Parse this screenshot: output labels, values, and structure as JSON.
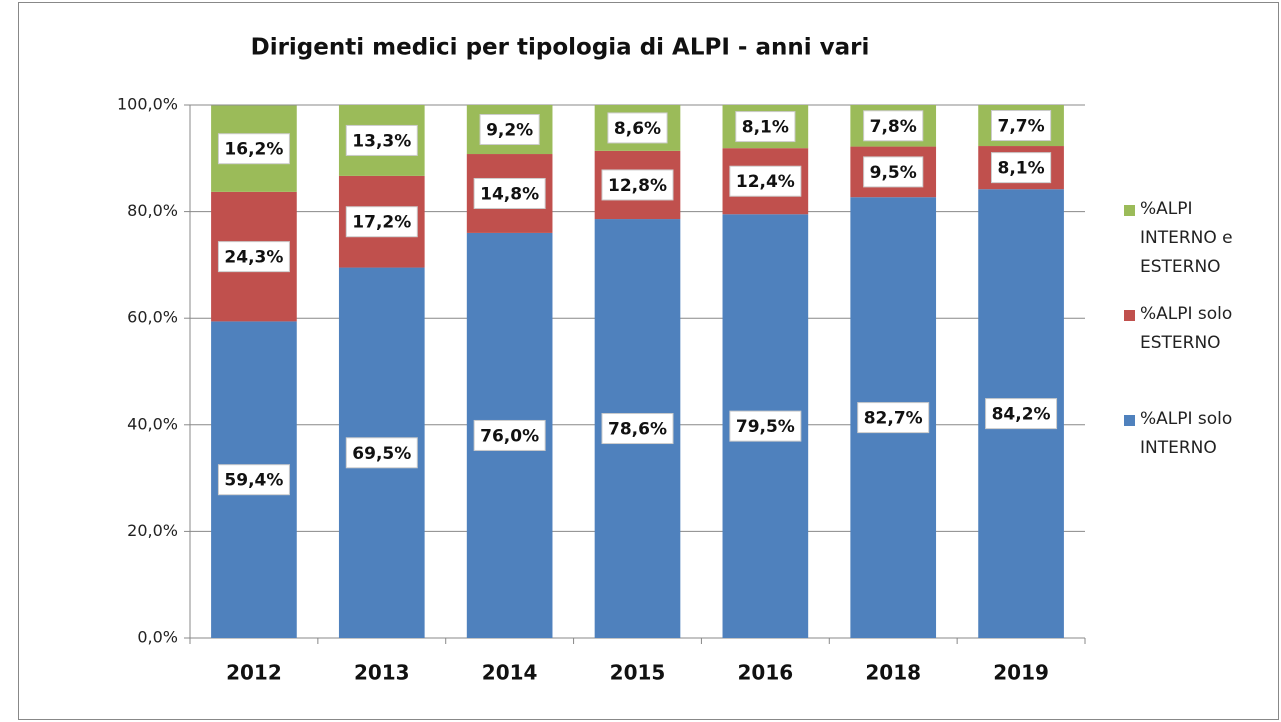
{
  "chart_data": {
    "type": "stacked_bar",
    "title": "Dirigenti medici per tipologia di ALPI - anni vari",
    "categories": [
      "2012",
      "2013",
      "2014",
      "2015",
      "2016",
      "2018",
      "2019"
    ],
    "series": [
      {
        "name": "%ALPI solo INTERNO",
        "color": "#4f81bd",
        "values": [
          59.4,
          69.5,
          76.0,
          78.6,
          79.5,
          82.7,
          84.2
        ],
        "value_labels": [
          "59,4%",
          "69,5%",
          "76,0%",
          "78,6%",
          "79,5%",
          "82,7%",
          "84,2%"
        ]
      },
      {
        "name": "%ALPI solo ESTERNO",
        "color": "#c0504d",
        "values": [
          24.3,
          17.2,
          14.8,
          12.8,
          12.4,
          9.5,
          8.1
        ],
        "value_labels": [
          "24,3%",
          "17,2%",
          "14,8%",
          "12,8%",
          "12,4%",
          "9,5%",
          "8,1%"
        ]
      },
      {
        "name": "%ALPI INTERNO e ESTERNO",
        "color": "#9bbb59",
        "values": [
          16.2,
          13.3,
          9.2,
          8.6,
          8.1,
          7.8,
          7.7
        ],
        "value_labels": [
          "16,2%",
          "13,3%",
          "9,2%",
          "8,6%",
          "8,1%",
          "7,8%",
          "7,7%"
        ]
      }
    ],
    "ylim": [
      0,
      100
    ],
    "yticks": [
      {
        "value": 0,
        "label": "0,0%"
      },
      {
        "value": 20,
        "label": "20,0%"
      },
      {
        "value": 40,
        "label": "40,0%"
      },
      {
        "value": 60,
        "label": "60,0%"
      },
      {
        "value": 80,
        "label": "80,0%"
      },
      {
        "value": 100,
        "label": "100,0%"
      }
    ],
    "grid": true,
    "legend": "right"
  }
}
